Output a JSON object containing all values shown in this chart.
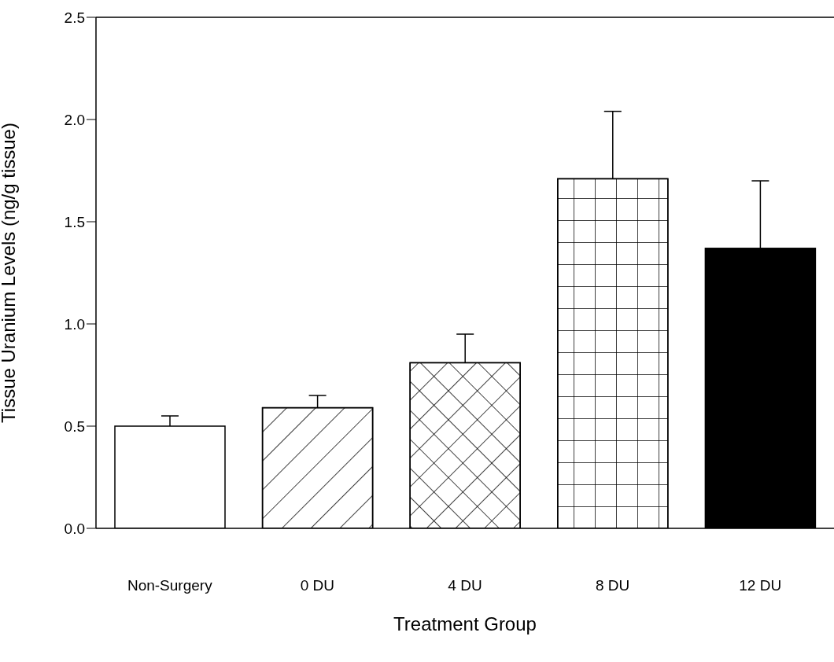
{
  "chart_data": {
    "type": "bar",
    "xlabel": "Treatment Group",
    "ylabel": "Tissue Uranium Levels (ng/g tissue)",
    "categories": [
      "Non-Surgery",
      "0 DU",
      "4 DU",
      "8 DU",
      "12 DU"
    ],
    "values": [
      0.5,
      0.59,
      0.81,
      1.71,
      1.37
    ],
    "errors": [
      [
        0.5,
        0.55
      ],
      [
        0.59,
        0.65
      ],
      [
        0.81,
        0.95
      ],
      [
        1.71,
        2.04
      ],
      [
        1.37,
        1.7
      ]
    ],
    "colors": [
      "#ffffff",
      "#ffffff",
      "#ffffff",
      "#ffffff",
      "#000000"
    ],
    "ylim": [
      0,
      2.5
    ],
    "yticks": [
      {
        "value": 0,
        "label": "0.0"
      },
      {
        "value": 0.5,
        "label": "0.5"
      },
      {
        "value": 1,
        "label": "1.0"
      },
      {
        "value": 1.5,
        "label": "1.5"
      },
      {
        "value": 2,
        "label": "2.0"
      },
      {
        "value": 2.5,
        "label": "2.5"
      }
    ],
    "grid": false,
    "legend": false
  }
}
